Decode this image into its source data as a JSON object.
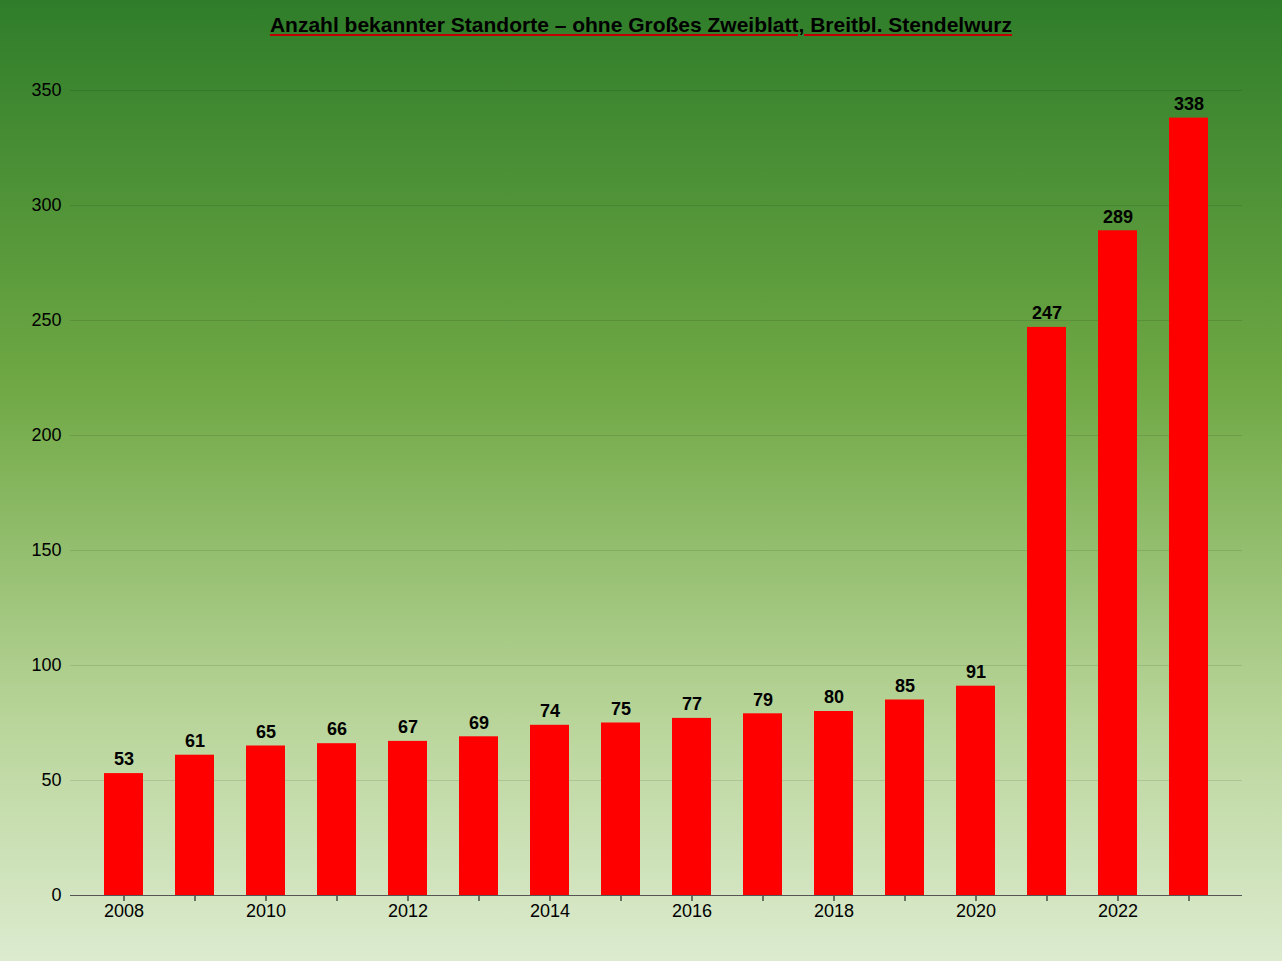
{
  "chart_data": {
    "type": "bar",
    "title": "Anzahl bekannter Standorte – ohne Großes Zweiblatt, Breitbl. Stendelwurz",
    "categories": [
      "2008",
      null,
      "2010",
      null,
      "2012",
      null,
      "2014",
      null,
      "2016",
      null,
      "2018",
      null,
      "2020",
      null,
      "2022",
      null
    ],
    "values": [
      53,
      61,
      65,
      66,
      67,
      69,
      74,
      75,
      77,
      79,
      80,
      85,
      91,
      247,
      289,
      338
    ],
    "color": "#ff0000",
    "ylim": [
      0,
      350
    ],
    "yticks": [
      0,
      50,
      100,
      150,
      200,
      250,
      300,
      350
    ],
    "grid": true,
    "data_labels": true
  }
}
